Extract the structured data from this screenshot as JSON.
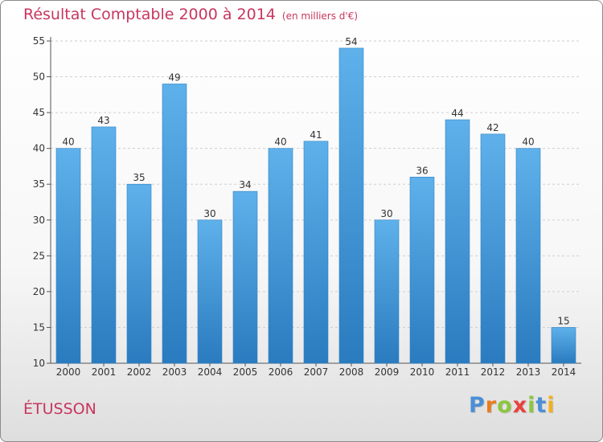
{
  "title": "Résultat Comptable 2000 à 2014",
  "unit": "(en milliers d'€)",
  "commune": "ÉTUSSON",
  "logo": {
    "letters": [
      "P",
      "r",
      "o",
      "x",
      "i",
      "t",
      "i"
    ],
    "colors": [
      "#4b8fd6",
      "#e87c1e",
      "#8cc63f",
      "#e8423d",
      "#8cc63f",
      "#4b8fd6",
      "#f2b01e"
    ]
  },
  "colors": {
    "bar_top": "#5eb1ea",
    "bar_bottom": "#2a7bbf",
    "title": "#c8365f"
  },
  "chart_data": {
    "type": "bar",
    "categories": [
      "2000",
      "2001",
      "2002",
      "2003",
      "2004",
      "2005",
      "2006",
      "2007",
      "2008",
      "2009",
      "2010",
      "2011",
      "2012",
      "2013",
      "2014"
    ],
    "values": [
      40,
      43,
      35,
      49,
      30,
      34,
      40,
      41,
      54,
      30,
      36,
      44,
      42,
      40,
      15
    ],
    "ylim": [
      10,
      55
    ],
    "yticks": [
      10,
      15,
      20,
      25,
      30,
      35,
      40,
      45,
      50,
      55
    ],
    "grid": true
  }
}
